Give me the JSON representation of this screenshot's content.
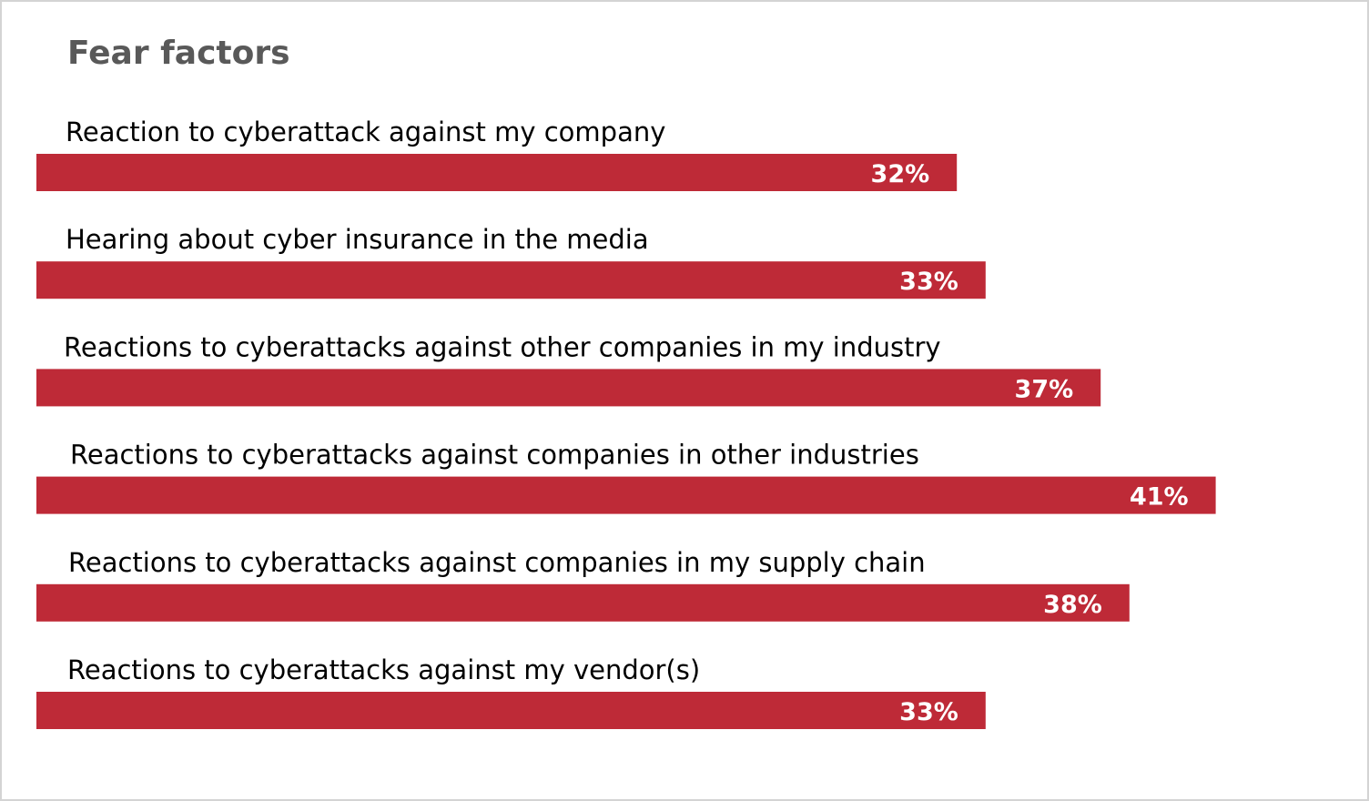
{
  "chart_data": {
    "type": "bar",
    "orientation": "horizontal",
    "title": "Fear factors",
    "categories": [
      "Reaction to cyberattack against my company",
      "Hearing about cyber insurance in the media",
      "Reactions to cyberattacks against other companies in my industry",
      "Reactions to cyberattacks against companies in other industries",
      "Reactions to cyberattacks against companies in my supply chain",
      "Reactions to cyberattacks against my vendor(s)"
    ],
    "values": [
      32,
      33,
      37,
      41,
      38,
      33
    ],
    "value_labels": [
      "32%",
      "33%",
      "37%",
      "41%",
      "38%",
      "33%"
    ],
    "unit": "%",
    "bar_color": "#BE2A37",
    "value_label_color": "#FFFFFF",
    "grid": false,
    "legend": "none"
  }
}
